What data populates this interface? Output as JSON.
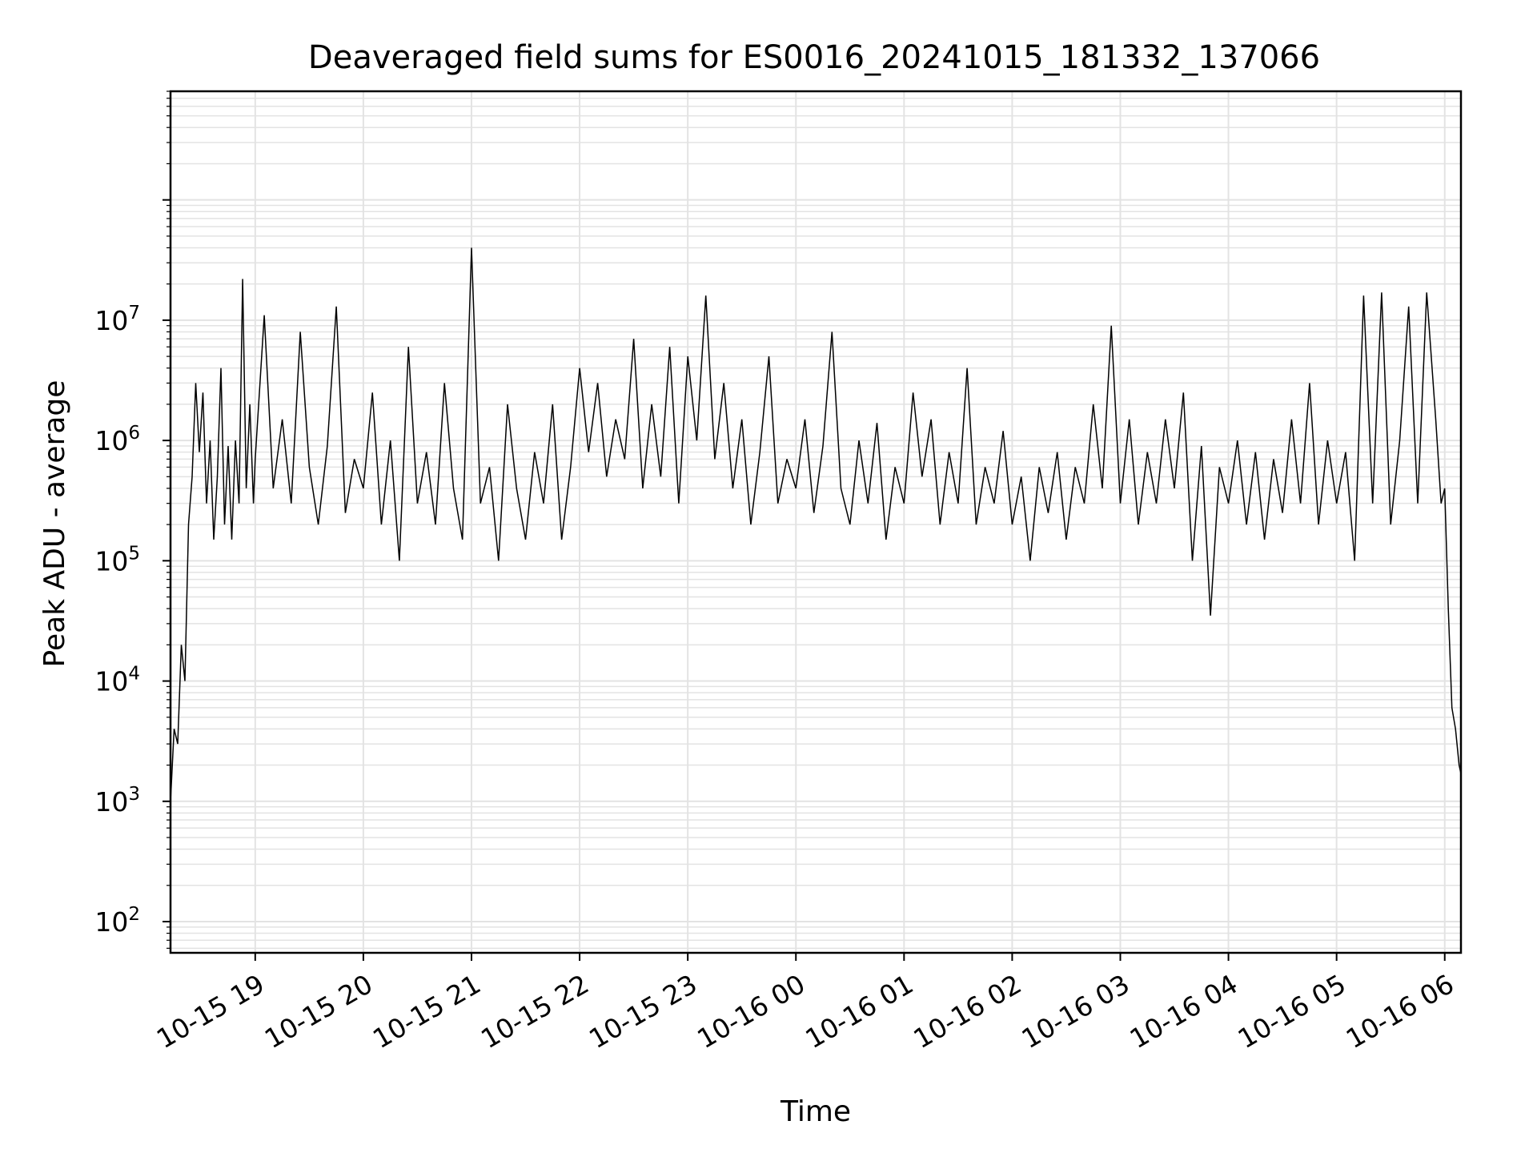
{
  "chart_data": {
    "type": "line",
    "title": "Deaveraged field sums for ES0016_20241015_181332_137066",
    "xlabel": "Time",
    "ylabel": "Peak ADU - average",
    "yscale": "log",
    "ylim": [
      55,
      800000000
    ],
    "xlim": [
      "2024-10-15 18:13",
      "2024-10-16 06:09"
    ],
    "grid": true,
    "line_color": "#000000",
    "grid_color": "#e3e3e3",
    "x_tick_labels": [
      "10-15 19",
      "10-15 20",
      "10-15 21",
      "10-15 22",
      "10-15 23",
      "10-16 00",
      "10-16 01",
      "10-16 02",
      "10-16 03",
      "10-16 04",
      "10-16 05",
      "10-16 06"
    ],
    "y_tick_labels": [
      {
        "base": "10",
        "exp": "2",
        "value": 100
      },
      {
        "base": "10",
        "exp": "3",
        "value": 1000
      },
      {
        "base": "10",
        "exp": "4",
        "value": 10000
      },
      {
        "base": "10",
        "exp": "5",
        "value": 100000
      },
      {
        "base": "10",
        "exp": "6",
        "value": 1000000
      },
      {
        "base": "10",
        "exp": "7",
        "value": 10000000
      }
    ],
    "series": [
      {
        "x": [
          "2024-10-15 18:13",
          "2024-10-15 18:15",
          "2024-10-15 18:17",
          "2024-10-15 18:19",
          "2024-10-15 18:21",
          "2024-10-15 18:23",
          "2024-10-15 18:25",
          "2024-10-15 18:27",
          "2024-10-15 18:29",
          "2024-10-15 18:31",
          "2024-10-15 18:33",
          "2024-10-15 18:35",
          "2024-10-15 18:37",
          "2024-10-15 18:39",
          "2024-10-15 18:41",
          "2024-10-15 18:43",
          "2024-10-15 18:45",
          "2024-10-15 18:47",
          "2024-10-15 18:49",
          "2024-10-15 18:51",
          "2024-10-15 18:53",
          "2024-10-15 18:55",
          "2024-10-15 18:57",
          "2024-10-15 18:59",
          "2024-10-15 19:00",
          "2024-10-15 19:05",
          "2024-10-15 19:10",
          "2024-10-15 19:15",
          "2024-10-15 19:20",
          "2024-10-15 19:25",
          "2024-10-15 19:30",
          "2024-10-15 19:35",
          "2024-10-15 19:40",
          "2024-10-15 19:45",
          "2024-10-15 19:50",
          "2024-10-15 19:55",
          "2024-10-15 20:00",
          "2024-10-15 20:05",
          "2024-10-15 20:10",
          "2024-10-15 20:15",
          "2024-10-15 20:20",
          "2024-10-15 20:25",
          "2024-10-15 20:30",
          "2024-10-15 20:35",
          "2024-10-15 20:40",
          "2024-10-15 20:45",
          "2024-10-15 20:50",
          "2024-10-15 20:55",
          "2024-10-15 21:00",
          "2024-10-15 21:05",
          "2024-10-15 21:10",
          "2024-10-15 21:15",
          "2024-10-15 21:20",
          "2024-10-15 21:25",
          "2024-10-15 21:30",
          "2024-10-15 21:35",
          "2024-10-15 21:40",
          "2024-10-15 21:45",
          "2024-10-15 21:50",
          "2024-10-15 21:55",
          "2024-10-15 22:00",
          "2024-10-15 22:05",
          "2024-10-15 22:10",
          "2024-10-15 22:15",
          "2024-10-15 22:20",
          "2024-10-15 22:25",
          "2024-10-15 22:30",
          "2024-10-15 22:35",
          "2024-10-15 22:40",
          "2024-10-15 22:45",
          "2024-10-15 22:50",
          "2024-10-15 22:55",
          "2024-10-15 23:00",
          "2024-10-15 23:05",
          "2024-10-15 23:10",
          "2024-10-15 23:15",
          "2024-10-15 23:20",
          "2024-10-15 23:25",
          "2024-10-15 23:30",
          "2024-10-15 23:35",
          "2024-10-15 23:40",
          "2024-10-15 23:45",
          "2024-10-15 23:50",
          "2024-10-15 23:55",
          "2024-10-16 00:00",
          "2024-10-16 00:05",
          "2024-10-16 00:10",
          "2024-10-16 00:15",
          "2024-10-16 00:20",
          "2024-10-16 00:25",
          "2024-10-16 00:30",
          "2024-10-16 00:35",
          "2024-10-16 00:40",
          "2024-10-16 00:45",
          "2024-10-16 00:50",
          "2024-10-16 00:55",
          "2024-10-16 01:00",
          "2024-10-16 01:05",
          "2024-10-16 01:10",
          "2024-10-16 01:15",
          "2024-10-16 01:20",
          "2024-10-16 01:25",
          "2024-10-16 01:30",
          "2024-10-16 01:35",
          "2024-10-16 01:40",
          "2024-10-16 01:45",
          "2024-10-16 01:50",
          "2024-10-16 01:55",
          "2024-10-16 02:00",
          "2024-10-16 02:05",
          "2024-10-16 02:10",
          "2024-10-16 02:15",
          "2024-10-16 02:20",
          "2024-10-16 02:25",
          "2024-10-16 02:30",
          "2024-10-16 02:35",
          "2024-10-16 02:40",
          "2024-10-16 02:45",
          "2024-10-16 02:50",
          "2024-10-16 02:55",
          "2024-10-16 03:00",
          "2024-10-16 03:05",
          "2024-10-16 03:10",
          "2024-10-16 03:15",
          "2024-10-16 03:20",
          "2024-10-16 03:25",
          "2024-10-16 03:30",
          "2024-10-16 03:35",
          "2024-10-16 03:40",
          "2024-10-16 03:45",
          "2024-10-16 03:50",
          "2024-10-16 03:55",
          "2024-10-16 04:00",
          "2024-10-16 04:05",
          "2024-10-16 04:10",
          "2024-10-16 04:15",
          "2024-10-16 04:20",
          "2024-10-16 04:25",
          "2024-10-16 04:30",
          "2024-10-16 04:35",
          "2024-10-16 04:40",
          "2024-10-16 04:45",
          "2024-10-16 04:50",
          "2024-10-16 04:55",
          "2024-10-16 05:00",
          "2024-10-16 05:05",
          "2024-10-16 05:10",
          "2024-10-16 05:15",
          "2024-10-16 05:20",
          "2024-10-16 05:25",
          "2024-10-16 05:30",
          "2024-10-16 05:35",
          "2024-10-16 05:40",
          "2024-10-16 05:45",
          "2024-10-16 05:50",
          "2024-10-16 05:55",
          "2024-10-16 05:58",
          "2024-10-16 06:00",
          "2024-10-16 06:02",
          "2024-10-16 06:04",
          "2024-10-16 06:06",
          "2024-10-16 06:08",
          "2024-10-16 06:09"
        ],
        "y": [
          1000,
          4000,
          3000,
          20000,
          10000,
          200000,
          500000,
          3000000,
          800000,
          2500000,
          300000,
          1000000,
          150000,
          500000,
          4000000,
          200000,
          900000,
          150000,
          1000000,
          300000,
          22000000,
          400000,
          2000000,
          300000,
          700000,
          11000000,
          400000,
          1500000,
          300000,
          8000000,
          600000,
          200000,
          900000,
          13000000,
          250000,
          700000,
          400000,
          2500000,
          200000,
          1000000,
          100000,
          6000000,
          300000,
          800000,
          200000,
          3000000,
          400000,
          150000,
          40000000,
          300000,
          600000,
          100000,
          2000000,
          400000,
          150000,
          800000,
          300000,
          2000000,
          150000,
          600000,
          4000000,
          800000,
          3000000,
          500000,
          1500000,
          700000,
          7000000,
          400000,
          2000000,
          500000,
          6000000,
          300000,
          5000000,
          1000000,
          16000000,
          700000,
          3000000,
          400000,
          1500000,
          200000,
          800000,
          5000000,
          300000,
          700000,
          400000,
          1500000,
          250000,
          900000,
          8000000,
          400000,
          200000,
          1000000,
          300000,
          1400000,
          150000,
          600000,
          300000,
          2500000,
          500000,
          1500000,
          200000,
          800000,
          300000,
          4000000,
          200000,
          600000,
          300000,
          1200000,
          200000,
          500000,
          100000,
          600000,
          250000,
          800000,
          150000,
          600000,
          300000,
          2000000,
          400000,
          9000000,
          300000,
          1500000,
          200000,
          800000,
          300000,
          1500000,
          400000,
          2500000,
          100000,
          900000,
          35000,
          600000,
          300000,
          1000000,
          200000,
          800000,
          150000,
          700000,
          250000,
          1500000,
          300000,
          3000000,
          200000,
          1000000,
          300000,
          800000,
          100000,
          16000000,
          300000,
          17000000,
          200000,
          1000000,
          13000000,
          300000,
          17000000,
          1500000,
          300000,
          400000,
          40000,
          6000,
          4000,
          2000,
          1700
        ]
      }
    ]
  }
}
